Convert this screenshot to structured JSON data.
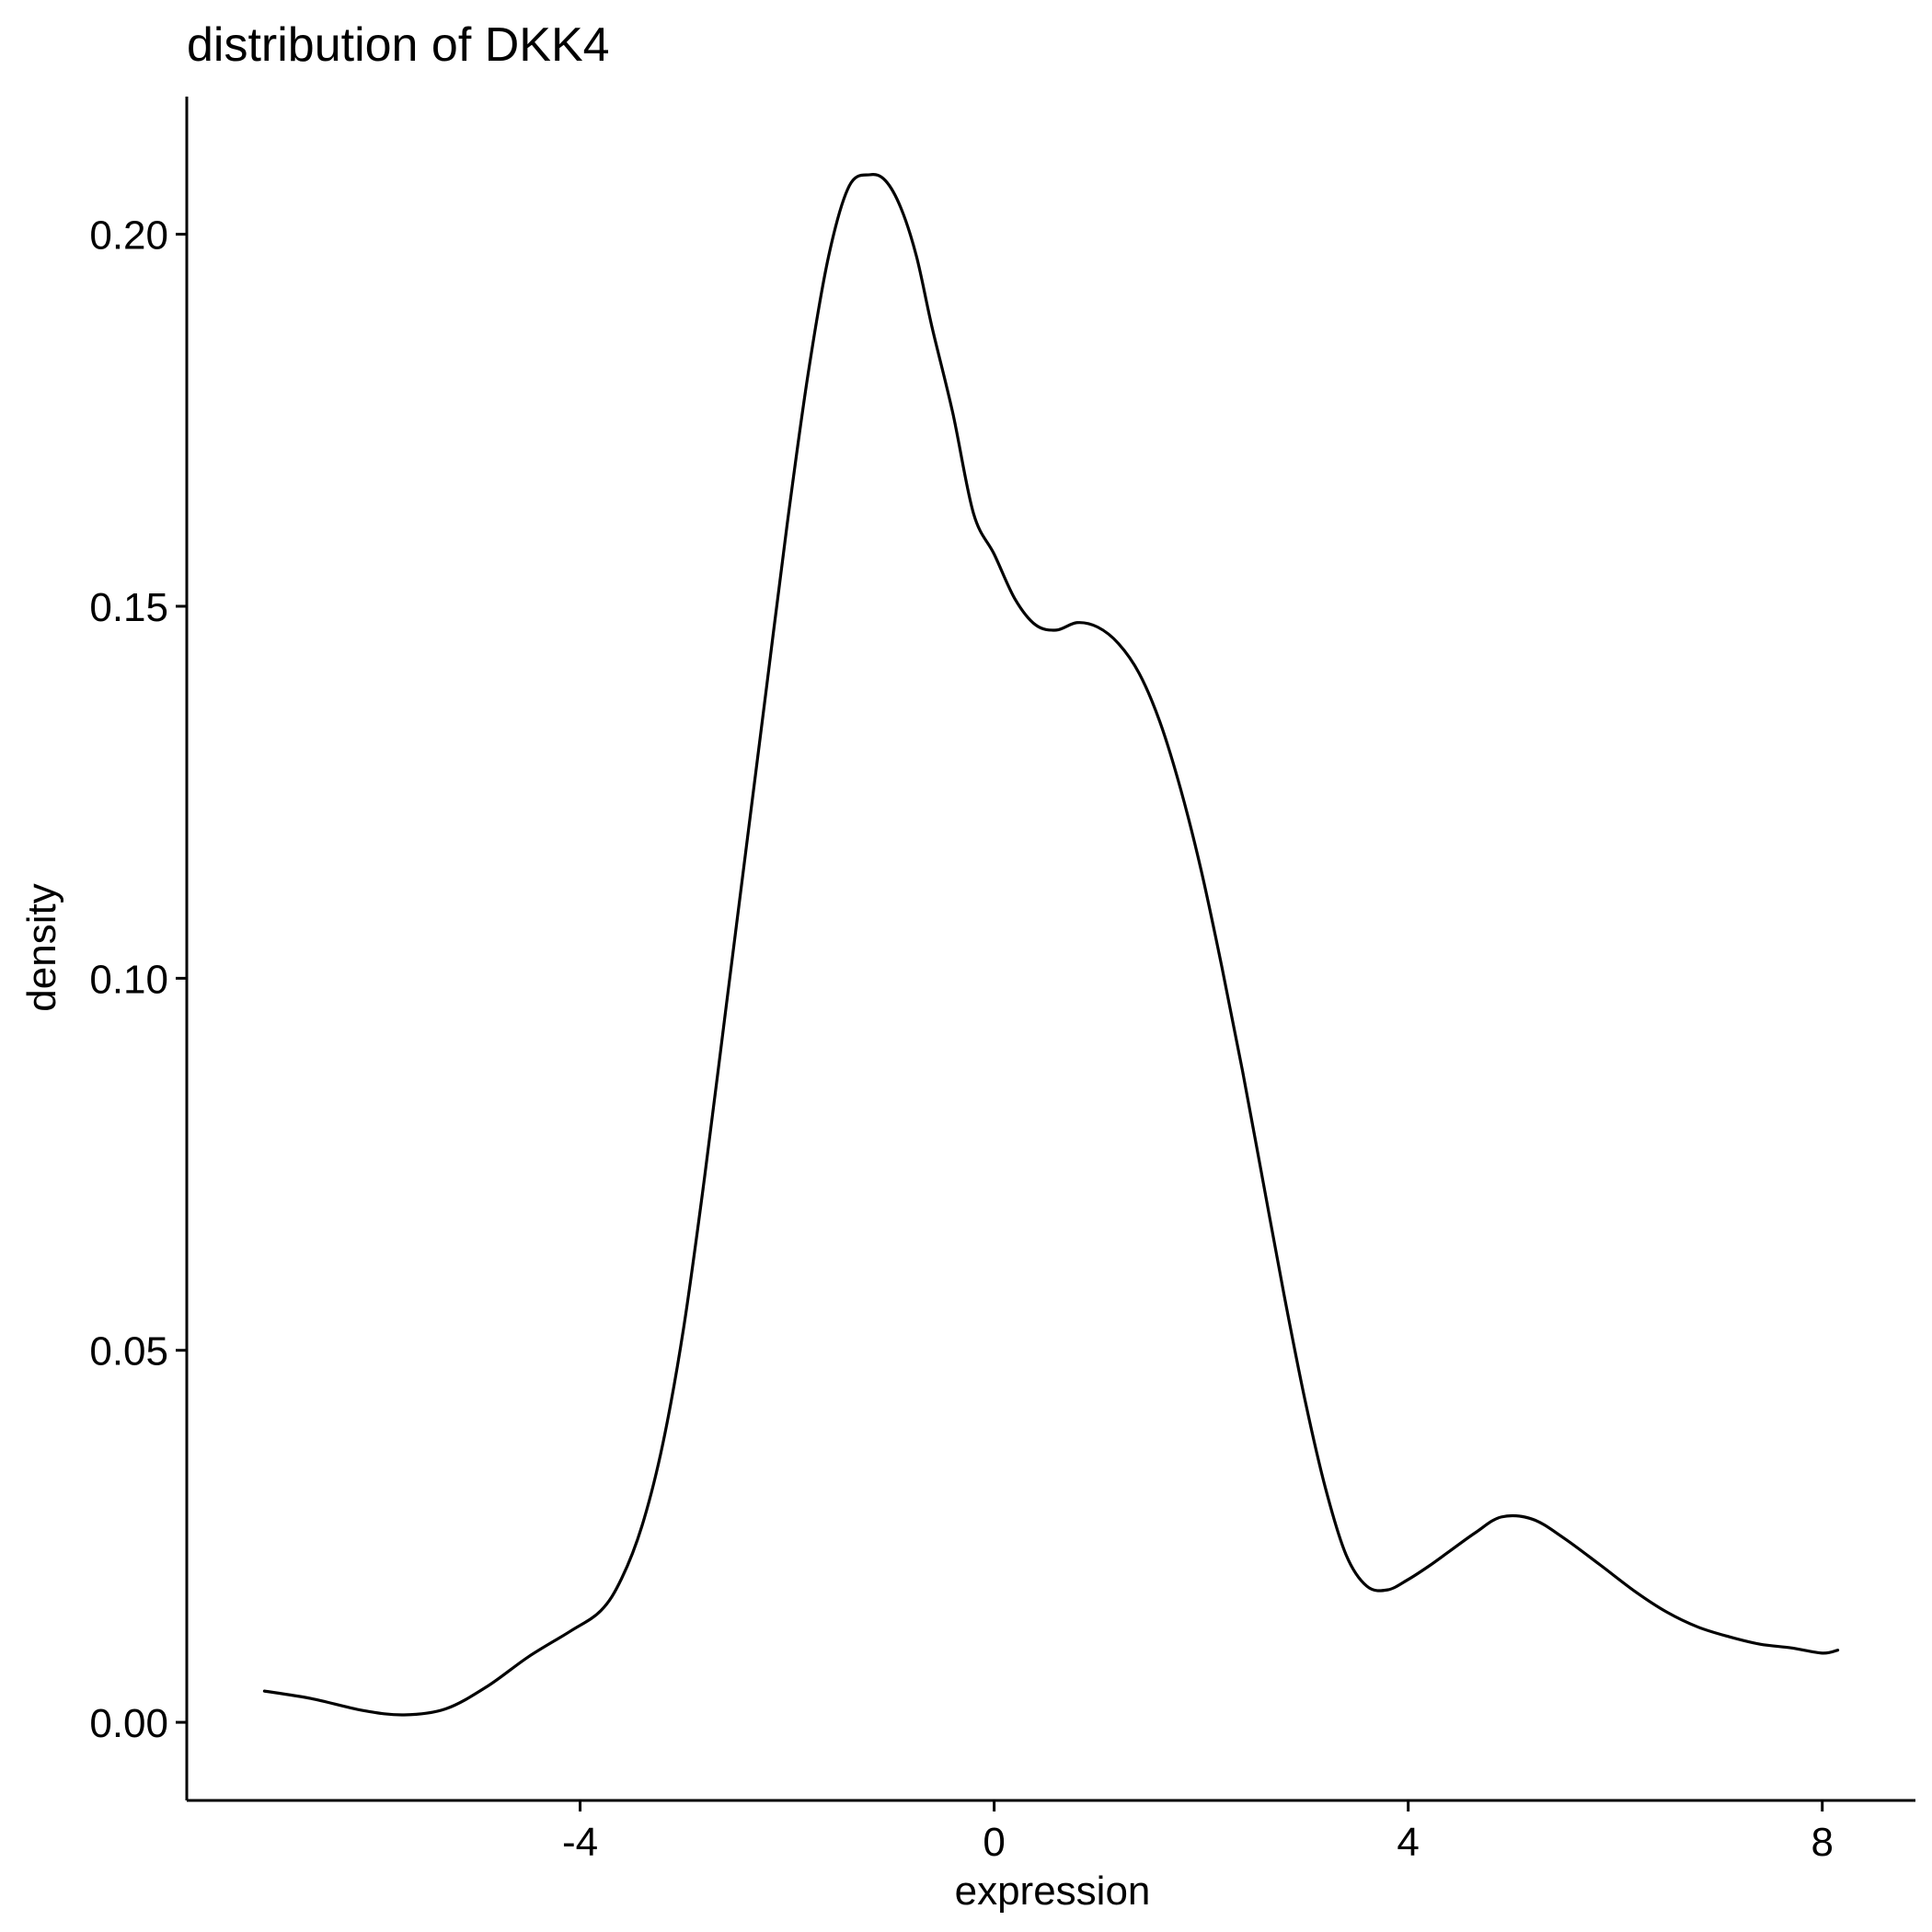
{
  "chart_data": {
    "type": "line",
    "title": "distribution of DKK4",
    "xlabel": "expression",
    "ylabel": "density",
    "xlim": [
      -7.8,
      8.9
    ],
    "ylim": [
      -0.0105,
      0.2185
    ],
    "x_ticks": [
      {
        "value": -4,
        "label": "-4"
      },
      {
        "value": 0,
        "label": "0"
      },
      {
        "value": 4,
        "label": "4"
      },
      {
        "value": 8,
        "label": "8"
      }
    ],
    "y_ticks": [
      {
        "value": 0.0,
        "label": "0.00"
      },
      {
        "value": 0.05,
        "label": "0.05"
      },
      {
        "value": 0.1,
        "label": "0.10"
      },
      {
        "value": 0.15,
        "label": "0.15"
      },
      {
        "value": 0.2,
        "label": "0.20"
      }
    ],
    "grid": false,
    "legend": "none",
    "line_color": "#000000",
    "series": [
      {
        "x": [
          -7.05,
          -6.6,
          -6.1,
          -5.7,
          -5.3,
          -4.9,
          -4.5,
          -4.1,
          -3.8,
          -3.6,
          -3.4,
          -3.2,
          -3.0,
          -2.8,
          -2.6,
          -2.4,
          -2.2,
          -2.0,
          -1.8,
          -1.6,
          -1.4,
          -1.2,
          -1.05,
          -0.9,
          -0.75,
          -0.6,
          -0.4,
          -0.2,
          0.0,
          0.2,
          0.4,
          0.6,
          0.8,
          1.0,
          1.2,
          1.4,
          1.6,
          1.8,
          2.0,
          2.2,
          2.4,
          2.6,
          2.8,
          3.0,
          3.2,
          3.4,
          3.6,
          3.8,
          4.0,
          4.2,
          4.4,
          4.65,
          4.9,
          5.2,
          5.5,
          5.85,
          6.2,
          6.5,
          6.8,
          7.1,
          7.4,
          7.7,
          8.0,
          8.15
        ],
        "y": [
          0.0042,
          0.0032,
          0.0016,
          0.001,
          0.0018,
          0.0048,
          0.0088,
          0.0122,
          0.015,
          0.0193,
          0.0265,
          0.0375,
          0.053,
          0.073,
          0.095,
          0.117,
          0.139,
          0.161,
          0.181,
          0.197,
          0.2065,
          0.208,
          0.2072,
          0.2035,
          0.197,
          0.1875,
          0.176,
          0.1625,
          0.157,
          0.151,
          0.1475,
          0.1468,
          0.1478,
          0.1472,
          0.145,
          0.141,
          0.1345,
          0.1255,
          0.1145,
          0.1015,
          0.0875,
          0.0725,
          0.0575,
          0.0435,
          0.0315,
          0.0225,
          0.0183,
          0.0178,
          0.0192,
          0.021,
          0.023,
          0.0255,
          0.0276,
          0.0273,
          0.0248,
          0.0212,
          0.0175,
          0.0148,
          0.0128,
          0.0115,
          0.0105,
          0.01,
          0.0093,
          0.0097
        ]
      }
    ]
  }
}
